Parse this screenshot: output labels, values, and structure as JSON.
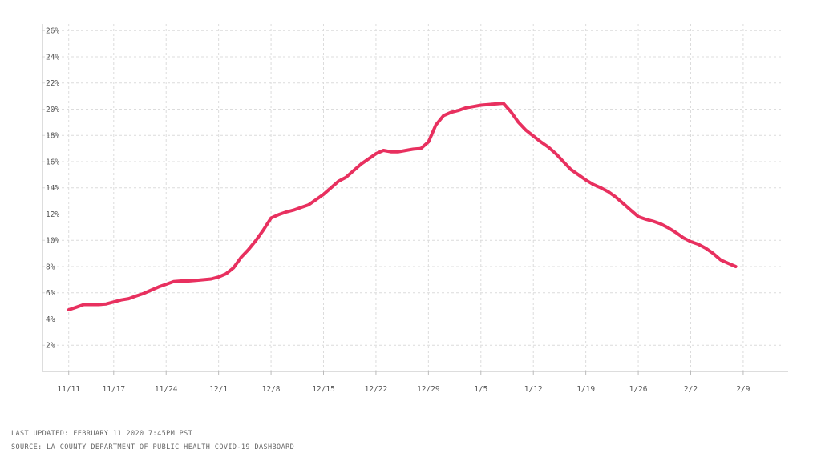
{
  "chart_data": {
    "type": "line",
    "title": "",
    "xlabel": "",
    "ylabel": "",
    "x_ticks": [
      "11/11",
      "11/17",
      "11/24",
      "12/1",
      "12/8",
      "12/15",
      "12/22",
      "12/29",
      "1/5",
      "1/12",
      "1/19",
      "1/26",
      "2/2",
      "2/9"
    ],
    "y_ticks": [
      "2%",
      "4%",
      "6%",
      "8%",
      "10%",
      "12%",
      "14%",
      "16%",
      "18%",
      "20%",
      "22%",
      "24%",
      "26%"
    ],
    "ylim": [
      0,
      26.5
    ],
    "xlim_days": [
      -3.5,
      96
    ],
    "grid": true,
    "line_color": "#e8305f",
    "series": [
      {
        "name": "",
        "points": [
          [
            0,
            4.7
          ],
          [
            1,
            4.9
          ],
          [
            2,
            5.1
          ],
          [
            3,
            5.1
          ],
          [
            4,
            5.1
          ],
          [
            5,
            5.15
          ],
          [
            6,
            5.3
          ],
          [
            7,
            5.45
          ],
          [
            8,
            5.55
          ],
          [
            9,
            5.75
          ],
          [
            10,
            5.95
          ],
          [
            11,
            6.2
          ],
          [
            12,
            6.45
          ],
          [
            13,
            6.65
          ],
          [
            14,
            6.85
          ],
          [
            15,
            6.9
          ],
          [
            16,
            6.9
          ],
          [
            17,
            6.95
          ],
          [
            18,
            7.0
          ],
          [
            19,
            7.05
          ],
          [
            20,
            7.2
          ],
          [
            21,
            7.45
          ],
          [
            22,
            7.9
          ],
          [
            23,
            8.7
          ],
          [
            24,
            9.3
          ],
          [
            25,
            10.0
          ],
          [
            26,
            10.8
          ],
          [
            27,
            11.7
          ],
          [
            28,
            11.95
          ],
          [
            29,
            12.15
          ],
          [
            30,
            12.3
          ],
          [
            31,
            12.5
          ],
          [
            32,
            12.7
          ],
          [
            33,
            13.1
          ],
          [
            34,
            13.5
          ],
          [
            35,
            14.0
          ],
          [
            36,
            14.5
          ],
          [
            37,
            14.8
          ],
          [
            38,
            15.3
          ],
          [
            39,
            15.8
          ],
          [
            40,
            16.2
          ],
          [
            41,
            16.6
          ],
          [
            42,
            16.85
          ],
          [
            43,
            16.75
          ],
          [
            44,
            16.75
          ],
          [
            45,
            16.85
          ],
          [
            46,
            16.95
          ],
          [
            47,
            17.0
          ],
          [
            48,
            17.5
          ],
          [
            49,
            18.8
          ],
          [
            50,
            19.5
          ],
          [
            51,
            19.75
          ],
          [
            52,
            19.9
          ],
          [
            53,
            20.1
          ],
          [
            54,
            20.2
          ],
          [
            55,
            20.3
          ],
          [
            56,
            20.35
          ],
          [
            57,
            20.4
          ],
          [
            58,
            20.45
          ],
          [
            59,
            19.8
          ],
          [
            60,
            19.0
          ],
          [
            61,
            18.4
          ],
          [
            62,
            17.95
          ],
          [
            63,
            17.5
          ],
          [
            64,
            17.1
          ],
          [
            65,
            16.6
          ],
          [
            66,
            16.0
          ],
          [
            67,
            15.4
          ],
          [
            68,
            15.0
          ],
          [
            69,
            14.6
          ],
          [
            70,
            14.25
          ],
          [
            71,
            14.0
          ],
          [
            72,
            13.7
          ],
          [
            73,
            13.3
          ],
          [
            74,
            12.8
          ],
          [
            75,
            12.3
          ],
          [
            76,
            11.8
          ],
          [
            77,
            11.6
          ],
          [
            78,
            11.45
          ],
          [
            79,
            11.25
          ],
          [
            80,
            10.95
          ],
          [
            81,
            10.6
          ],
          [
            82,
            10.2
          ],
          [
            83,
            9.9
          ],
          [
            84,
            9.7
          ],
          [
            85,
            9.4
          ],
          [
            86,
            9.0
          ],
          [
            87,
            8.5
          ],
          [
            88,
            8.25
          ],
          [
            89,
            8.0
          ]
        ]
      }
    ]
  },
  "footer": {
    "updated": "LAST UPDATED: FEBRUARY 11 2020 7:45PM PST",
    "source": "SOURCE: LA COUNTY DEPARTMENT OF PUBLIC HEALTH COVID-19 DASHBOARD"
  }
}
